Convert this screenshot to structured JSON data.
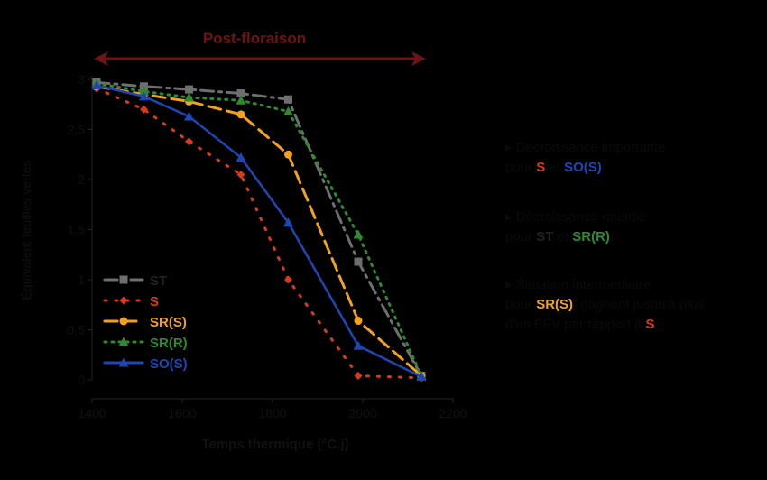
{
  "chart_data": {
    "type": "line",
    "title": "Post-floraison",
    "xlabel": "Temps thermique (°C.j)",
    "ylabel": "Équivalent feuilles vertes",
    "xlim": [
      1400,
      2200
    ],
    "ylim": [
      0,
      3
    ],
    "xticks": [
      "1400",
      "1600",
      "1800",
      "2000",
      "2200"
    ],
    "yticks": [
      "0",
      "0.5",
      "1",
      "1.5",
      "2",
      "2.5",
      "3"
    ],
    "legend_position": "bottom-left",
    "series": [
      {
        "name": "ST",
        "color": "#6e6e6e",
        "marker": "square",
        "dash": "14,6,3,6",
        "points": [
          [
            1410,
            2.97
          ],
          [
            1515,
            2.93
          ],
          [
            1615,
            2.9
          ],
          [
            1730,
            2.86
          ],
          [
            1835,
            2.8
          ],
          [
            1990,
            1.18
          ],
          [
            2130,
            0.04
          ]
        ]
      },
      {
        "name": "S",
        "color": "#d83a1c",
        "marker": "diamond",
        "dash": "2,10",
        "points": [
          [
            1410,
            2.91
          ],
          [
            1515,
            2.7
          ],
          [
            1615,
            2.38
          ],
          [
            1730,
            2.05
          ],
          [
            1835,
            1.0
          ],
          [
            1990,
            0.04
          ],
          [
            2130,
            0.02
          ]
        ]
      },
      {
        "name": "SR(S)",
        "color": "#f0a21e",
        "marker": "circle",
        "dash": "14,7",
        "points": [
          [
            1410,
            2.93
          ],
          [
            1515,
            2.85
          ],
          [
            1615,
            2.78
          ],
          [
            1730,
            2.65
          ],
          [
            1835,
            2.25
          ],
          [
            1990,
            0.59
          ],
          [
            2130,
            0.04
          ]
        ]
      },
      {
        "name": "SR(R)",
        "color": "#2f8a2f",
        "marker": "triangle",
        "dash": "2,6",
        "points": [
          [
            1410,
            2.96
          ],
          [
            1515,
            2.88
          ],
          [
            1615,
            2.82
          ],
          [
            1730,
            2.79
          ],
          [
            1835,
            2.68
          ],
          [
            1990,
            1.45
          ],
          [
            2130,
            0.04
          ]
        ]
      },
      {
        "name": "SO(S)",
        "color": "#1e46b4",
        "marker": "triangle",
        "dash": "",
        "points": [
          [
            1410,
            2.94
          ],
          [
            1515,
            2.83
          ],
          [
            1615,
            2.63
          ],
          [
            1730,
            2.22
          ],
          [
            1835,
            1.57
          ],
          [
            1990,
            0.34
          ],
          [
            2130,
            0.03
          ]
        ]
      }
    ]
  },
  "annotations": {
    "arrow_color": "#6e1414",
    "item1": {
      "prefix": "Décroissance importante",
      "line2_a": "pour ",
      "s1": "S",
      "mid": " et ",
      "s2": "SO(S)",
      "s1_color": "#d83a1c",
      "s2_color": "#1e46b4"
    },
    "item2": {
      "prefix": "Décroissance ralentie",
      "line2_a": "pour ",
      "s1": "ST",
      "mid": " et ",
      "s2": "SR(R)",
      "s1_color": "#222222",
      "s2_color": "#2f8a2f"
    },
    "item3": {
      "prefix": "Situation intermédiaire",
      "line2_a": "pour ",
      "s1": "SR(S)",
      "line2_b": ", gagnant jusqu'à plus",
      "line3_a": "d'un EFV par rapport à ",
      "s2": "S",
      "s1_color": "#f0a21e",
      "s2_color": "#d83a1c"
    }
  }
}
